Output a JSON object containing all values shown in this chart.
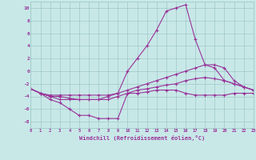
{
  "xlabel": "Windchill (Refroidissement éolien,°C)",
  "bg_color": "#c8e8e8",
  "grid_color": "#a0c8c8",
  "line_color": "#993399",
  "xlim": [
    0,
    23
  ],
  "ylim": [
    -9,
    11
  ],
  "xticks": [
    0,
    1,
    2,
    3,
    4,
    5,
    6,
    7,
    8,
    9,
    10,
    11,
    12,
    13,
    14,
    15,
    16,
    17,
    18,
    19,
    20,
    21,
    22,
    23
  ],
  "yticks": [
    -8,
    -6,
    -4,
    -2,
    0,
    2,
    4,
    6,
    8,
    10
  ],
  "line1_x": [
    0,
    1,
    2,
    3,
    4,
    5,
    6,
    7,
    8,
    9,
    10,
    11,
    12,
    13,
    14,
    15,
    16,
    17,
    18,
    19,
    20,
    21,
    22,
    23
  ],
  "line1_y": [
    -2.8,
    -3.5,
    -4.5,
    -5.0,
    -6.0,
    -7.0,
    -7.0,
    -7.5,
    -7.5,
    -7.5,
    -3.5,
    -3.5,
    -3.3,
    -3.0,
    -3.0,
    -3.0,
    -3.5,
    -3.8,
    -3.8,
    -3.8,
    -3.8,
    -3.5,
    -3.5,
    -3.5
  ],
  "line2_x": [
    0,
    1,
    2,
    3,
    4,
    5,
    6,
    7,
    8,
    9,
    10,
    11,
    12,
    13,
    14,
    15,
    16,
    17,
    18,
    19,
    20,
    21,
    22,
    23
  ],
  "line2_y": [
    -2.8,
    -3.5,
    -4.0,
    -4.0,
    -4.3,
    -4.5,
    -4.5,
    -4.5,
    -4.5,
    -4.0,
    -3.5,
    -3.0,
    -2.8,
    -2.5,
    -2.2,
    -2.0,
    -1.5,
    -1.2,
    -1.0,
    -1.2,
    -1.5,
    -2.0,
    -2.5,
    -3.0
  ],
  "line3_x": [
    0,
    1,
    2,
    3,
    4,
    5,
    6,
    7,
    8,
    9,
    10,
    11,
    12,
    13,
    14,
    15,
    16,
    17,
    18,
    19,
    20,
    21,
    22,
    23
  ],
  "line3_y": [
    -2.8,
    -3.5,
    -3.8,
    -3.8,
    -3.8,
    -3.8,
    -3.8,
    -3.8,
    -3.8,
    -3.5,
    -3.0,
    -2.5,
    -2.0,
    -1.5,
    -1.0,
    -0.5,
    0.0,
    0.5,
    1.0,
    1.0,
    0.5,
    -1.5,
    -2.5,
    -3.0
  ],
  "line4_x": [
    0,
    1,
    2,
    3,
    4,
    5,
    6,
    7,
    8,
    9,
    10,
    11,
    12,
    13,
    14,
    15,
    16,
    17,
    18,
    19,
    20,
    21,
    22,
    23
  ],
  "line4_y": [
    -2.8,
    -3.5,
    -4.0,
    -4.5,
    -4.5,
    -4.5,
    -4.5,
    -4.5,
    -4.0,
    -3.5,
    0.0,
    2.0,
    4.0,
    6.5,
    9.5,
    10.0,
    10.5,
    5.0,
    1.0,
    0.5,
    -1.5,
    -2.0,
    -2.5,
    -3.0
  ]
}
